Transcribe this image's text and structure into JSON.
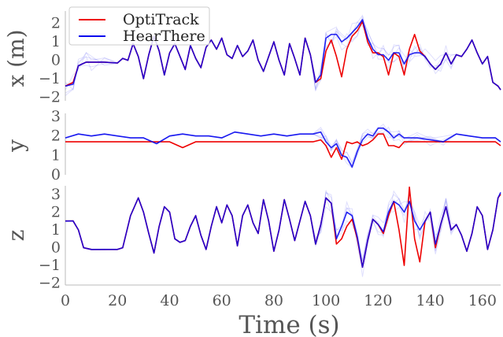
{
  "chart_data": [
    {
      "type": "line",
      "ylabel": "x (m)",
      "ylim": [
        -2.2,
        2.5
      ],
      "yticks": [
        -2,
        -1,
        0,
        1,
        2
      ],
      "xlim": [
        0,
        167
      ],
      "series": [
        {
          "name": "OptiTrack",
          "color": "#ee0000",
          "x": [
            0,
            3,
            5,
            8,
            10,
            15,
            20,
            22,
            24,
            26,
            28,
            30,
            32,
            34,
            36,
            38,
            40,
            42,
            44,
            46,
            48,
            50,
            52,
            54,
            56,
            58,
            60,
            62,
            64,
            66,
            68,
            70,
            72,
            74,
            76,
            78,
            80,
            82,
            84,
            86,
            88,
            90,
            92,
            94,
            96,
            98,
            100,
            102,
            104,
            106,
            108,
            110,
            112,
            114,
            116,
            118,
            120,
            122,
            124,
            126,
            128,
            130,
            132,
            134,
            136,
            138,
            140,
            142,
            144,
            146,
            148,
            150,
            152,
            154,
            156,
            158,
            160,
            162,
            164,
            166,
            167
          ],
          "y": [
            -1.4,
            -1.2,
            -0.3,
            -0.1,
            -0.1,
            -0.1,
            -0.15,
            0.1,
            0.0,
            0.9,
            0.2,
            -1.0,
            0.3,
            1.3,
            0.5,
            -0.8,
            0.4,
            0.9,
            0.2,
            -0.5,
            0.8,
            0.1,
            -0.4,
            0.7,
            1.1,
            0.6,
            1.2,
            0.3,
            0.1,
            0.8,
            0.2,
            0.5,
            1.1,
            0.0,
            -0.6,
            0.2,
            1.0,
            0.0,
            -0.8,
            0.9,
            0.1,
            -0.8,
            1.2,
            0.3,
            -1.2,
            -1.0,
            0.5,
            1.1,
            0.2,
            -0.9,
            0.6,
            1.3,
            1.6,
            2.1,
            1.0,
            0.4,
            0.4,
            0.2,
            -0.8,
            0.4,
            0.2,
            -0.8,
            0.6,
            1.4,
            0.5,
            0.2,
            -0.2,
            -0.5,
            -0.2,
            0.4,
            -0.2,
            0.3,
            0.2,
            0.6,
            1.1,
            0.4,
            -0.2,
            0.2,
            -1.2,
            -1.4,
            -1.6
          ]
        },
        {
          "name": "HearThere",
          "color": "#0000ee",
          "x": [
            0,
            3,
            5,
            8,
            10,
            15,
            20,
            22,
            24,
            26,
            28,
            30,
            32,
            34,
            36,
            38,
            40,
            42,
            44,
            46,
            48,
            50,
            52,
            54,
            56,
            58,
            60,
            62,
            64,
            66,
            68,
            70,
            72,
            74,
            76,
            78,
            80,
            82,
            84,
            86,
            88,
            90,
            92,
            94,
            96,
            98,
            100,
            102,
            104,
            106,
            108,
            110,
            112,
            114,
            116,
            118,
            120,
            122,
            124,
            126,
            128,
            130,
            132,
            134,
            136,
            138,
            140,
            142,
            144,
            146,
            148,
            150,
            152,
            154,
            156,
            158,
            160,
            162,
            164,
            166,
            167
          ],
          "y": [
            -1.4,
            -1.3,
            -0.3,
            -0.1,
            -0.1,
            -0.1,
            -0.15,
            0.1,
            0.0,
            0.9,
            0.2,
            -1.0,
            0.3,
            1.3,
            0.5,
            -0.8,
            0.4,
            0.9,
            0.2,
            -0.5,
            0.8,
            0.1,
            -0.4,
            0.7,
            1.1,
            0.6,
            1.2,
            0.3,
            0.1,
            0.8,
            0.2,
            0.5,
            1.1,
            0.0,
            -0.6,
            0.2,
            1.0,
            0.0,
            -0.8,
            0.9,
            0.1,
            -0.8,
            1.2,
            0.3,
            -1.2,
            -0.8,
            1.2,
            1.4,
            1.4,
            1.0,
            1.2,
            1.5,
            1.8,
            2.2,
            1.2,
            0.6,
            0.3,
            0.3,
            0.0,
            0.4,
            0.4,
            -0.2,
            0.3,
            0.4,
            0.4,
            0.2,
            -0.2,
            -0.5,
            -0.2,
            0.4,
            -0.2,
            0.3,
            0.2,
            0.6,
            1.1,
            0.4,
            -0.2,
            0.2,
            -1.2,
            -1.4,
            -1.6
          ]
        }
      ],
      "legend": {
        "position": "top-left",
        "entries": [
          "OptiTrack",
          "HearThere"
        ]
      }
    },
    {
      "type": "line",
      "ylabel": "y",
      "ylim": [
        0,
        3
      ],
      "yticks": [
        0,
        1,
        2,
        3
      ],
      "xlim": [
        0,
        167
      ],
      "series": [
        {
          "name": "OptiTrack",
          "color": "#ee0000",
          "x": [
            0,
            10,
            20,
            30,
            40,
            45,
            50,
            60,
            70,
            80,
            90,
            95,
            98,
            100,
            102,
            104,
            106,
            108,
            110,
            112,
            114,
            116,
            118,
            120,
            122,
            124,
            126,
            128,
            130,
            135,
            140,
            145,
            150,
            155,
            160,
            165,
            167
          ],
          "y": [
            1.7,
            1.7,
            1.7,
            1.7,
            1.7,
            1.4,
            1.7,
            1.7,
            1.7,
            1.7,
            1.7,
            1.7,
            1.8,
            1.5,
            0.9,
            1.4,
            0.8,
            1.7,
            1.6,
            1.7,
            1.5,
            1.6,
            1.8,
            2.1,
            2.1,
            1.5,
            1.5,
            1.4,
            1.7,
            1.7,
            1.7,
            1.7,
            1.7,
            1.7,
            1.7,
            1.7,
            1.5
          ]
        },
        {
          "name": "HearThere",
          "color": "#0000ee",
          "x": [
            0,
            5,
            10,
            15,
            20,
            25,
            30,
            35,
            40,
            45,
            50,
            55,
            60,
            65,
            70,
            75,
            80,
            85,
            90,
            95,
            98,
            100,
            102,
            104,
            106,
            108,
            110,
            112,
            114,
            116,
            118,
            120,
            122,
            124,
            126,
            128,
            130,
            135,
            140,
            145,
            150,
            155,
            160,
            165,
            167
          ],
          "y": [
            1.9,
            2.1,
            2.0,
            2.1,
            2.0,
            1.9,
            1.9,
            1.6,
            2.0,
            2.1,
            2.0,
            2.0,
            1.9,
            2.2,
            2.1,
            2.0,
            2.1,
            2.0,
            2.1,
            2.1,
            2.2,
            1.7,
            1.4,
            1.6,
            1.0,
            0.9,
            0.4,
            1.2,
            1.8,
            2.1,
            2.0,
            2.4,
            2.4,
            2.2,
            1.9,
            2.1,
            1.9,
            1.9,
            1.8,
            1.7,
            2.1,
            2.0,
            1.9,
            1.9,
            1.7
          ]
        }
      ]
    },
    {
      "type": "line",
      "ylabel": "z",
      "ylim": [
        -2.1,
        3.3
      ],
      "yticks": [
        -2,
        -1,
        0,
        1,
        2,
        3
      ],
      "xlim": [
        0,
        167
      ],
      "xticks": [
        0,
        20,
        40,
        60,
        80,
        100,
        120,
        140,
        160
      ],
      "xlabel": "Time (s)",
      "series": [
        {
          "name": "OptiTrack",
          "color": "#ee0000",
          "x": [
            0,
            3,
            5,
            7,
            10,
            15,
            20,
            22,
            25,
            28,
            30,
            32,
            34,
            36,
            38,
            40,
            42,
            44,
            46,
            48,
            50,
            52,
            54,
            56,
            58,
            60,
            62,
            64,
            66,
            68,
            70,
            72,
            74,
            76,
            78,
            80,
            82,
            84,
            86,
            88,
            90,
            92,
            94,
            96,
            98,
            100,
            102,
            104,
            106,
            108,
            110,
            112,
            114,
            116,
            118,
            120,
            122,
            124,
            126,
            128,
            130,
            132,
            134,
            136,
            138,
            140,
            142,
            144,
            146,
            148,
            150,
            152,
            154,
            156,
            158,
            160,
            162,
            164,
            166,
            167
          ],
          "y": [
            1.5,
            1.5,
            1.0,
            0.0,
            -0.1,
            -0.1,
            -0.1,
            0.0,
            1.8,
            2.8,
            2.0,
            0.8,
            -0.3,
            1.2,
            2.3,
            2.0,
            0.5,
            0.3,
            0.4,
            1.2,
            1.8,
            0.7,
            -0.1,
            1.2,
            2.3,
            1.4,
            2.4,
            1.8,
            0.1,
            1.8,
            2.4,
            1.4,
            0.8,
            2.7,
            1.5,
            -0.2,
            1.0,
            2.7,
            1.6,
            0.4,
            1.5,
            2.6,
            1.8,
            0.2,
            1.3,
            2.8,
            2.5,
            0.2,
            0.5,
            1.2,
            1.6,
            0.5,
            -1.1,
            0.4,
            1.6,
            1.3,
            0.8,
            1.8,
            2.6,
            1.0,
            -1.0,
            3.4,
            0.5,
            -0.8,
            1.5,
            2.0,
            0.0,
            1.3,
            2.3,
            1.0,
            1.3,
            0.7,
            -0.2,
            0.8,
            2.3,
            1.8,
            -0.1,
            1.0,
            2.8,
            3.0
          ]
        },
        {
          "name": "HearThere",
          "color": "#0000ee",
          "x": [
            0,
            3,
            5,
            7,
            10,
            15,
            20,
            22,
            25,
            28,
            30,
            32,
            34,
            36,
            38,
            40,
            42,
            44,
            46,
            48,
            50,
            52,
            54,
            56,
            58,
            60,
            62,
            64,
            66,
            68,
            70,
            72,
            74,
            76,
            78,
            80,
            82,
            84,
            86,
            88,
            90,
            92,
            94,
            96,
            98,
            100,
            102,
            104,
            106,
            108,
            110,
            112,
            114,
            116,
            118,
            120,
            122,
            124,
            126,
            128,
            130,
            132,
            134,
            136,
            138,
            140,
            142,
            144,
            146,
            148,
            150,
            152,
            154,
            156,
            158,
            160,
            162,
            164,
            166,
            167
          ],
          "y": [
            1.5,
            1.5,
            1.0,
            0.0,
            -0.1,
            -0.1,
            -0.1,
            0.0,
            1.8,
            2.8,
            2.0,
            0.8,
            -0.3,
            1.2,
            2.3,
            2.0,
            0.5,
            0.3,
            0.4,
            1.2,
            1.8,
            0.7,
            -0.1,
            1.2,
            2.3,
            1.4,
            2.4,
            1.8,
            0.1,
            1.8,
            2.4,
            1.4,
            0.8,
            2.7,
            1.5,
            -0.2,
            1.0,
            2.7,
            1.6,
            0.4,
            1.5,
            2.6,
            1.8,
            0.2,
            1.3,
            2.8,
            2.5,
            0.5,
            1.2,
            2.0,
            1.8,
            0.6,
            -1.1,
            0.4,
            1.6,
            1.3,
            0.9,
            2.0,
            2.6,
            2.4,
            2.0,
            2.6,
            1.5,
            1.0,
            1.5,
            2.0,
            0.2,
            1.3,
            2.3,
            1.0,
            1.3,
            0.7,
            -0.2,
            0.8,
            2.3,
            1.8,
            -0.1,
            1.0,
            2.8,
            3.1
          ]
        }
      ]
    }
  ]
}
